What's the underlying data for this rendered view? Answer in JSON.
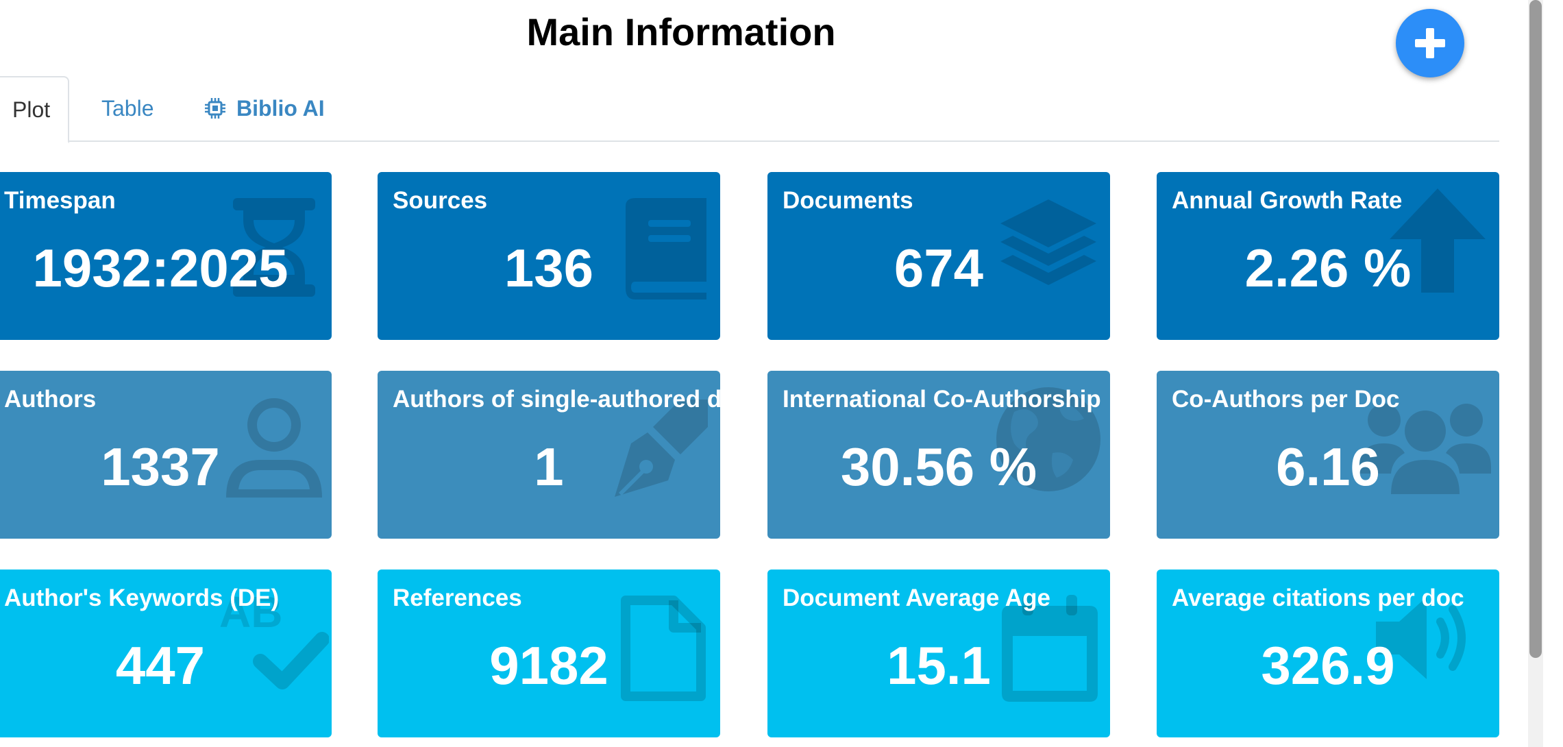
{
  "header": {
    "title": "Main Information"
  },
  "fab": {
    "icon": "plus-icon"
  },
  "tabs": [
    {
      "label": "Plot",
      "active": true
    },
    {
      "label": "Table",
      "active": false
    },
    {
      "label": "Biblio AI",
      "active": false,
      "icon": "chip-icon"
    }
  ],
  "colors": {
    "row1": "#0073b7",
    "row2": "#3c8dbc",
    "row3": "#00c0ef",
    "fab": "#2c8ef8",
    "tab_link": "#3a87c2"
  },
  "boxes": [
    {
      "label": "Timespan",
      "value": "1932:2025",
      "icon": "hourglass-icon"
    },
    {
      "label": "Sources",
      "value": "136",
      "icon": "book-icon"
    },
    {
      "label": "Documents",
      "value": "674",
      "icon": "layers-icon"
    },
    {
      "label": "Annual Growth Rate",
      "value": "2.26 %",
      "icon": "arrow-up-icon"
    },
    {
      "label": "Authors",
      "value": "1337",
      "icon": "user-icon"
    },
    {
      "label": "Authors of single-authored docs",
      "value": "1",
      "icon": "pen-nib-icon"
    },
    {
      "label": "International Co-Authorship",
      "value": "30.56 %",
      "icon": "globe-icon"
    },
    {
      "label": "Co-Authors per Doc",
      "value": "6.16",
      "icon": "users-icon"
    },
    {
      "label": "Author's Keywords (DE)",
      "value": "447",
      "icon": "spell-check-icon"
    },
    {
      "label": "References",
      "value": "9182",
      "icon": "file-icon"
    },
    {
      "label": "Document Average Age",
      "value": "15.1",
      "icon": "calendar-icon"
    },
    {
      "label": "Average citations per doc",
      "value": "326.9",
      "icon": "volume-icon"
    }
  ]
}
